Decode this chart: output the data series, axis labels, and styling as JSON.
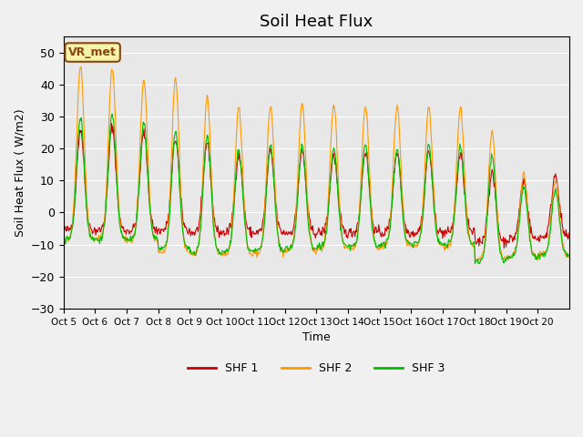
{
  "title": "Soil Heat Flux",
  "ylabel": "Soil Heat Flux ( W/m2)",
  "xlabel": "Time",
  "ylim": [
    -30,
    55
  ],
  "yticks": [
    -30,
    -20,
    -10,
    0,
    10,
    20,
    30,
    40,
    50
  ],
  "background_color": "#e8e8e8",
  "line_colors": {
    "SHF 1": "#cc0000",
    "SHF 2": "#ff9900",
    "SHF 3": "#00bb00"
  },
  "legend_labels": [
    "SHF 1",
    "SHF 2",
    "SHF 3"
  ],
  "annotation_text": "VR_met",
  "x_tick_labels": [
    "Oct 5",
    "Oct 6",
    "Oct 7",
    "Oct 8",
    "Oct 9",
    "Oct 10",
    "Oct 11",
    "Oct 12",
    "Oct 13",
    "Oct 14",
    "Oct 15",
    "Oct 16",
    "Oct 17",
    "Oct 18",
    "Oct 19",
    "Oct 20"
  ],
  "n_days": 16,
  "points_per_day": 48,
  "shf2_peaks": [
    46,
    45,
    41,
    42,
    36,
    33,
    33,
    34,
    34,
    33,
    33,
    33,
    33,
    25,
    12,
    10
  ],
  "shf2_troughs": [
    -12,
    -12,
    -13,
    -18,
    -19,
    -19,
    -18,
    -17,
    -16,
    -16,
    -15,
    -15,
    -15,
    -21,
    -20,
    -19
  ],
  "shf3_peaks": [
    30,
    31,
    28,
    25,
    24,
    20,
    21,
    21,
    20,
    21,
    20,
    21,
    21,
    18,
    8,
    7
  ],
  "shf3_troughs": [
    -12,
    -12,
    -12,
    -16,
    -18,
    -17,
    -17,
    -16,
    -15,
    -15,
    -14,
    -14,
    -14,
    -22,
    -20,
    -19
  ],
  "shf1_peaks": [
    26,
    27,
    25,
    23,
    22,
    18,
    19,
    19,
    18,
    19,
    19,
    19,
    18,
    12,
    10,
    12
  ],
  "shf1_troughs": [
    -8,
    -8,
    -8,
    -8,
    -9,
    -9,
    -9,
    -9,
    -9,
    -9,
    -9,
    -9,
    -9,
    -13,
    -12,
    -11
  ]
}
